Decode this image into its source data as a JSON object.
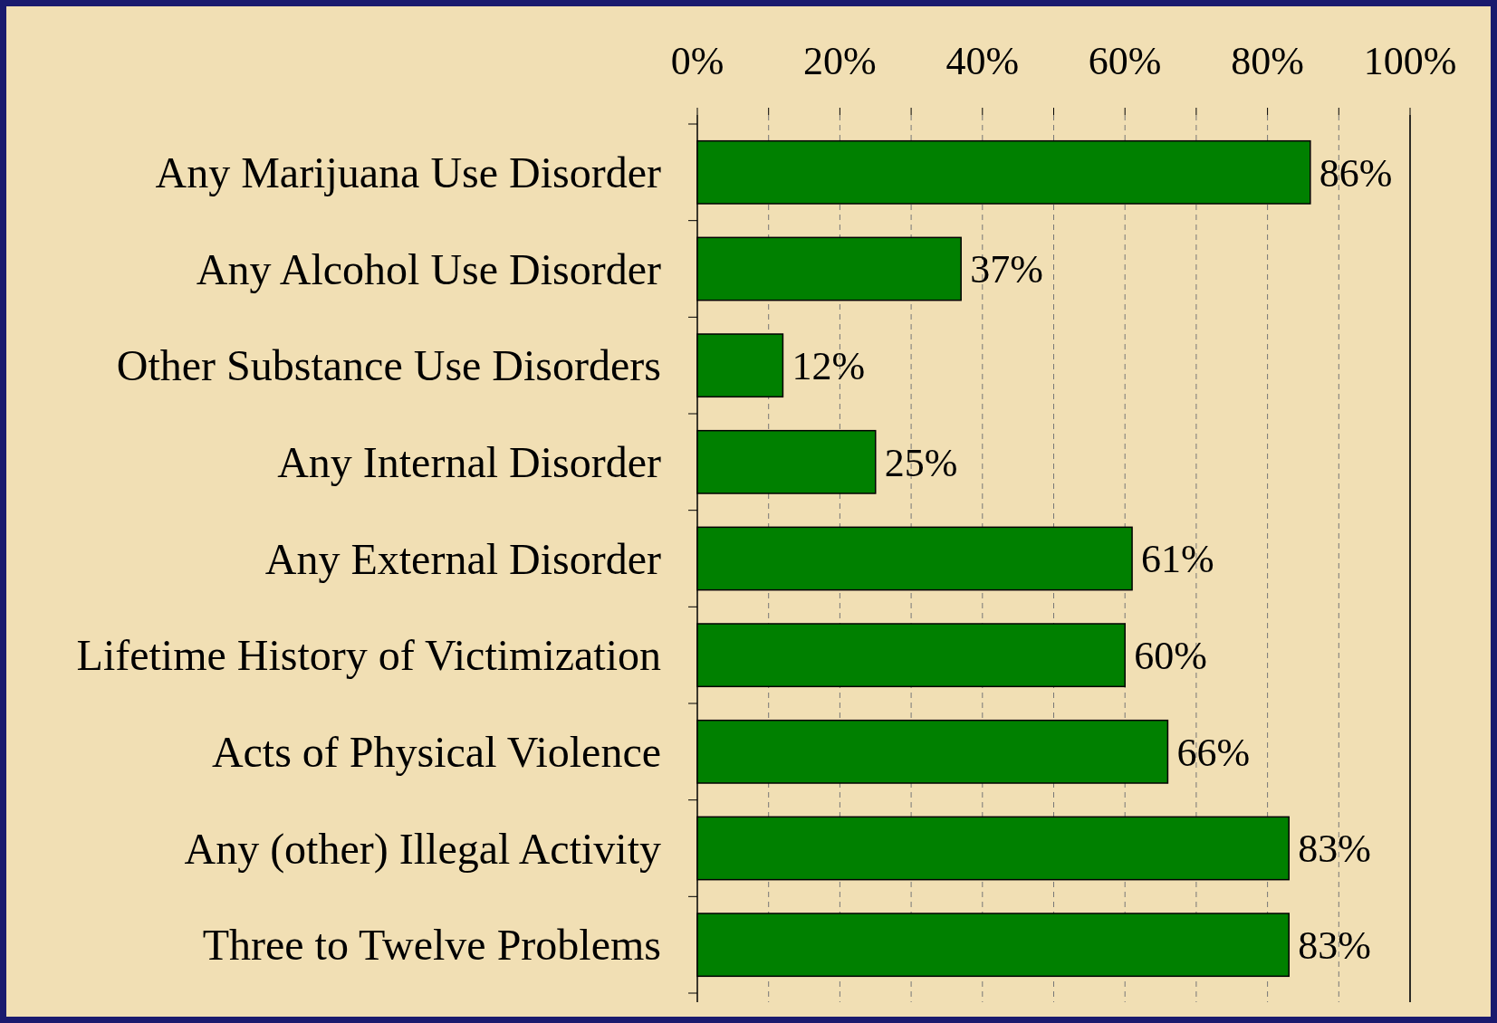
{
  "chart_data": {
    "type": "bar",
    "orientation": "horizontal",
    "categories": [
      "Any Marijuana Use Disorder",
      "Any Alcohol Use Disorder",
      "Other Substance Use Disorders",
      "Any Internal Disorder",
      "Any External Disorder",
      "Lifetime History of Victimization",
      "Acts of Physical Violence",
      "Any (other) Illegal Activity",
      "Three to Twelve Problems"
    ],
    "values": [
      86,
      37,
      12,
      25,
      61,
      60,
      66,
      83,
      83
    ],
    "color": "#008000",
    "xlim": [
      0,
      100
    ],
    "xticks": [
      {
        "value": 0,
        "label": "0%"
      },
      {
        "value": 10,
        "label": null
      },
      {
        "value": 20,
        "label": "20%"
      },
      {
        "value": 30,
        "label": null
      },
      {
        "value": 40,
        "label": "40%"
      },
      {
        "value": 50,
        "label": null
      },
      {
        "value": 60,
        "label": "60%"
      },
      {
        "value": 70,
        "label": null
      },
      {
        "value": 80,
        "label": "80%"
      },
      {
        "value": 90,
        "label": null
      },
      {
        "value": 100,
        "label": "100%"
      }
    ],
    "value_labels": [
      "86%",
      "37%",
      "12%",
      "25%",
      "61%",
      "60%",
      "66%",
      "83%",
      "83%"
    ],
    "grid": "x"
  }
}
